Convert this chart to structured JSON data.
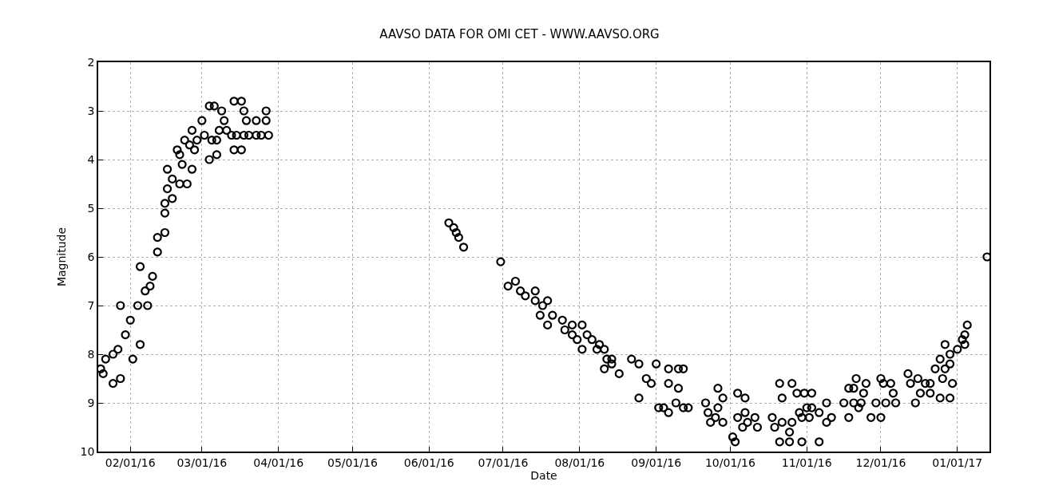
{
  "chart_data": {
    "type": "scatter",
    "title": "AAVSO DATA FOR OMI CET - WWW.AAVSO.ORG",
    "xlabel": "Date",
    "ylabel": "Magnitude",
    "x": [
      "2016-01-20",
      "2016-01-21",
      "2016-01-22",
      "2016-01-25",
      "2016-01-25",
      "2016-01-28",
      "2016-01-28",
      "2016-01-27",
      "2016-01-30",
      "2016-02-02",
      "2016-02-01",
      "2016-02-04",
      "2016-02-05",
      "2016-02-05",
      "2016-02-07",
      "2016-02-08",
      "2016-02-09",
      "2016-02-10",
      "2016-02-12",
      "2016-02-12",
      "2016-02-15",
      "2016-02-15",
      "2016-02-15",
      "2016-02-16",
      "2016-02-16",
      "2016-02-18",
      "2016-02-18",
      "2016-02-20",
      "2016-02-21",
      "2016-02-21",
      "2016-02-22",
      "2016-02-24",
      "2016-02-23",
      "2016-02-25",
      "2016-02-26",
      "2016-02-26",
      "2016-02-27",
      "2016-02-28",
      "2016-03-01",
      "2016-03-02",
      "2016-03-04",
      "2016-03-04",
      "2016-03-05",
      "2016-03-06",
      "2016-03-07",
      "2016-03-07",
      "2016-03-08",
      "2016-03-09",
      "2016-03-10",
      "2016-03-11",
      "2016-03-13",
      "2016-03-14",
      "2016-03-14",
      "2016-03-15",
      "2016-03-17",
      "2016-03-17",
      "2016-03-18",
      "2016-03-18",
      "2016-03-19",
      "2016-03-20",
      "2016-03-23",
      "2016-03-23",
      "2016-03-25",
      "2016-03-27",
      "2016-03-27",
      "2016-03-28",
      "2016-06-09",
      "2016-06-11",
      "2016-06-12",
      "2016-06-13",
      "2016-06-15",
      "2016-06-30",
      "2016-07-03",
      "2016-07-06",
      "2016-07-08",
      "2016-07-10",
      "2016-07-14",
      "2016-07-14",
      "2016-07-17",
      "2016-07-19",
      "2016-07-16",
      "2016-07-19",
      "2016-07-21",
      "2016-07-25",
      "2016-07-26",
      "2016-07-29",
      "2016-08-02",
      "2016-07-29",
      "2016-07-31",
      "2016-08-04",
      "2016-08-02",
      "2016-08-06",
      "2016-08-09",
      "2016-08-08",
      "2016-08-11",
      "2016-08-12",
      "2016-08-11",
      "2016-08-14",
      "2016-08-14",
      "2016-08-17",
      "2016-08-22",
      "2016-08-25",
      "2016-08-25",
      "2016-08-28",
      "2016-08-30",
      "2016-09-01",
      "2016-09-02",
      "2016-09-04",
      "2016-09-06",
      "2016-09-06",
      "2016-09-06",
      "2016-09-09",
      "2016-09-10",
      "2016-09-10",
      "2016-09-12",
      "2016-09-12",
      "2016-09-14",
      "2016-09-21",
      "2016-09-22",
      "2016-09-23",
      "2016-09-26",
      "2016-09-28",
      "2016-09-26",
      "2016-09-25",
      "2016-09-28",
      "2016-10-02",
      "2016-10-03",
      "2016-10-04",
      "2016-10-04",
      "2016-10-07",
      "2016-10-07",
      "2016-10-06",
      "2016-10-08",
      "2016-10-11",
      "2016-10-12",
      "2016-10-18",
      "2016-10-19",
      "2016-10-21",
      "2016-10-22",
      "2016-10-22",
      "2016-10-25",
      "2016-10-26",
      "2016-10-26",
      "2016-10-21",
      "2016-10-25",
      "2016-10-28",
      "2016-10-30",
      "2016-10-31",
      "2016-10-29",
      "2016-10-30",
      "2016-11-01",
      "2016-11-02",
      "2016-11-03",
      "2016-11-03",
      "2016-11-06",
      "2016-11-06",
      "2016-11-09",
      "2016-11-09",
      "2016-11-11",
      "2016-11-16",
      "2016-11-18",
      "2016-11-18",
      "2016-11-20",
      "2016-11-21",
      "2016-11-20",
      "2016-11-22",
      "2016-11-23",
      "2016-11-24",
      "2016-11-25",
      "2016-11-27",
      "2016-11-29",
      "2016-12-01",
      "2016-12-01",
      "2016-12-02",
      "2016-12-03",
      "2016-12-05",
      "2016-12-06",
      "2016-12-07",
      "2016-12-12",
      "2016-12-13",
      "2016-12-15",
      "2016-12-16",
      "2016-12-17",
      "2016-12-19",
      "2016-12-21",
      "2016-12-21",
      "2016-12-23",
      "2016-12-25",
      "2016-12-25",
      "2016-12-26",
      "2016-12-27",
      "2016-12-27",
      "2016-12-29",
      "2016-12-29",
      "2016-12-29",
      "2016-12-30",
      "2017-01-01",
      "2017-01-03",
      "2017-01-04",
      "2017-01-04",
      "2017-01-05",
      "2017-01-13"
    ],
    "series": [
      {
        "color": "#000000",
        "values": [
          8.3,
          8.4,
          8.1,
          8.6,
          8.0,
          8.5,
          7.0,
          7.9,
          7.6,
          8.1,
          7.3,
          7.0,
          7.8,
          6.2,
          6.7,
          7.0,
          6.6,
          6.4,
          5.6,
          5.9,
          5.5,
          5.1,
          4.9,
          4.2,
          4.6,
          4.8,
          4.4,
          3.8,
          3.9,
          4.5,
          4.1,
          4.5,
          3.6,
          3.7,
          3.4,
          4.2,
          3.8,
          3.6,
          3.2,
          3.5,
          4.0,
          2.9,
          3.6,
          2.9,
          3.9,
          3.6,
          3.4,
          3.0,
          3.2,
          3.4,
          3.5,
          3.8,
          2.8,
          3.5,
          2.8,
          3.8,
          3.0,
          3.5,
          3.2,
          3.5,
          3.2,
          3.5,
          3.5,
          3.2,
          3.0,
          3.5,
          5.3,
          5.4,
          5.5,
          5.6,
          5.8,
          6.1,
          6.6,
          6.5,
          6.7,
          6.8,
          6.7,
          6.9,
          7.0,
          6.9,
          7.2,
          7.4,
          7.2,
          7.3,
          7.5,
          7.4,
          7.4,
          7.6,
          7.7,
          7.6,
          7.9,
          7.7,
          7.8,
          7.9,
          7.9,
          8.1,
          8.3,
          8.1,
          8.2,
          8.4,
          8.1,
          8.2,
          8.9,
          8.5,
          8.6,
          8.2,
          9.1,
          9.1,
          8.3,
          9.2,
          8.6,
          9.0,
          8.3,
          8.7,
          8.3,
          9.1,
          9.1,
          9.0,
          9.2,
          9.4,
          8.7,
          8.9,
          9.1,
          9.3,
          9.4,
          9.7,
          9.8,
          8.8,
          9.3,
          8.9,
          9.2,
          9.5,
          9.4,
          9.3,
          9.5,
          9.3,
          9.5,
          8.6,
          8.9,
          9.4,
          9.6,
          9.4,
          8.6,
          9.8,
          9.8,
          8.8,
          9.8,
          8.8,
          9.2,
          9.3,
          9.1,
          9.3,
          8.8,
          9.1,
          9.8,
          9.2,
          9.0,
          9.4,
          9.3,
          9.0,
          9.3,
          8.7,
          8.7,
          8.5,
          9.0,
          9.1,
          9.0,
          8.8,
          8.6,
          9.3,
          9.0,
          8.5,
          9.3,
          8.6,
          9.0,
          8.6,
          8.8,
          9.0,
          8.4,
          8.6,
          9.0,
          8.5,
          8.8,
          8.6,
          8.6,
          8.8,
          8.3,
          8.1,
          8.9,
          8.5,
          7.8,
          8.3,
          8.2,
          8.9,
          8.0,
          8.6,
          7.9,
          7.7,
          7.8,
          7.6,
          7.4,
          6.0
        ]
      }
    ],
    "xlim": [
      "2016-01-19",
      "2017-01-14"
    ],
    "xticks": [
      {
        "value": "2016-02-01",
        "label": "02/01/16"
      },
      {
        "value": "2016-03-01",
        "label": "03/01/16"
      },
      {
        "value": "2016-04-01",
        "label": "04/01/16"
      },
      {
        "value": "2016-05-01",
        "label": "05/01/16"
      },
      {
        "value": "2016-06-01",
        "label": "06/01/16"
      },
      {
        "value": "2016-07-01",
        "label": "07/01/16"
      },
      {
        "value": "2016-08-01",
        "label": "08/01/16"
      },
      {
        "value": "2016-09-01",
        "label": "09/01/16"
      },
      {
        "value": "2016-10-01",
        "label": "10/01/16"
      },
      {
        "value": "2016-11-01",
        "label": "11/01/16"
      },
      {
        "value": "2016-12-01",
        "label": "12/01/16"
      },
      {
        "value": "2017-01-01",
        "label": "01/01/17"
      }
    ],
    "ylim": [
      10,
      2
    ],
    "yticks": [
      2,
      3,
      4,
      5,
      6,
      7,
      8,
      9,
      10
    ],
    "grid": true,
    "marker": "circle"
  }
}
